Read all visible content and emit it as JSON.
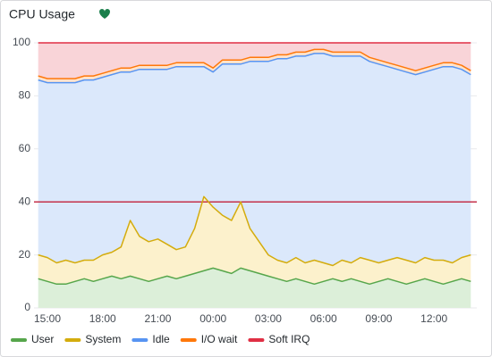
{
  "chart_data": {
    "type": "stacked_area",
    "title": "CPU Usage",
    "x": [
      "14:30",
      "15:00",
      "15:30",
      "16:00",
      "16:30",
      "17:00",
      "17:30",
      "18:00",
      "18:30",
      "19:00",
      "19:30",
      "20:00",
      "20:30",
      "21:00",
      "21:30",
      "22:00",
      "22:30",
      "23:00",
      "23:30",
      "00:00",
      "00:30",
      "01:00",
      "01:30",
      "02:00",
      "02:30",
      "03:00",
      "03:30",
      "04:00",
      "04:30",
      "05:00",
      "05:30",
      "06:00",
      "06:30",
      "07:00",
      "07:30",
      "08:00",
      "08:30",
      "09:00",
      "09:30",
      "10:00",
      "10:30",
      "11:00",
      "11:30",
      "12:00",
      "12:30",
      "13:00",
      "13:30",
      "14:00"
    ],
    "xticks": [
      "15:00",
      "18:00",
      "21:00",
      "00:00",
      "03:00",
      "06:00",
      "09:00",
      "12:00"
    ],
    "ylim": [
      0,
      100
    ],
    "yticks": [
      0,
      20,
      40,
      60,
      80,
      100
    ],
    "grid": true,
    "threshold": {
      "value": 40,
      "color": "#c4314b"
    },
    "legend": "bottom-left",
    "series": [
      {
        "name": "User",
        "color": "#56a64b",
        "fill": "#dcefd9",
        "values": [
          11,
          10,
          9,
          9,
          10,
          11,
          10,
          11,
          12,
          11,
          12,
          11,
          10,
          11,
          12,
          11,
          12,
          13,
          14,
          15,
          14,
          13,
          15,
          14,
          13,
          12,
          11,
          10,
          11,
          10,
          9,
          10,
          11,
          10,
          11,
          10,
          9,
          10,
          11,
          10,
          9,
          10,
          11,
          10,
          9,
          10,
          11,
          10
        ]
      },
      {
        "name": "System",
        "color": "#d4ac0d",
        "fill": "#fcf1cc",
        "values": [
          9,
          9,
          8,
          9,
          7,
          7,
          8,
          9,
          9,
          12,
          21,
          16,
          15,
          15,
          12,
          11,
          11,
          17,
          28,
          23,
          21,
          20,
          25,
          16,
          12,
          8,
          7,
          7,
          8,
          7,
          9,
          7,
          5,
          8,
          6,
          9,
          9,
          7,
          7,
          9,
          9,
          7,
          8,
          8,
          9,
          7,
          8,
          10
        ]
      },
      {
        "name": "Idle",
        "color": "#5794f2",
        "fill": "#dbe8fb",
        "values": [
          66,
          66,
          68,
          67,
          68,
          68,
          68,
          67,
          67,
          66,
          56,
          63,
          65,
          64,
          66,
          69,
          68,
          61,
          49,
          51,
          57,
          59,
          52,
          63,
          68,
          73,
          76,
          77,
          76,
          78,
          78,
          79,
          79,
          77,
          78,
          76,
          75,
          75,
          73,
          71,
          71,
          71,
          70,
          72,
          73,
          74,
          71,
          68
        ]
      },
      {
        "name": "I/O wait",
        "color": "#ff780a",
        "fill": "#ffe3cc",
        "values": [
          1.5,
          1.5,
          1.5,
          1.5,
          1.5,
          1.5,
          1.5,
          1.5,
          1.5,
          1.5,
          1.5,
          1.5,
          1.5,
          1.5,
          1.5,
          1.5,
          1.5,
          1.5,
          1.5,
          1.5,
          1.5,
          1.5,
          1.5,
          1.5,
          1.5,
          1.5,
          1.5,
          1.5,
          1.5,
          1.5,
          1.5,
          1.5,
          1.5,
          1.5,
          1.5,
          1.5,
          1.5,
          1.5,
          1.5,
          1.5,
          1.5,
          1.5,
          1.5,
          1.5,
          1.5,
          1.5,
          1.5,
          1.5
        ]
      },
      {
        "name": "Soft IRQ",
        "color": "#e02f44",
        "fill": "#f9d4d8",
        "values": [
          12.5,
          13.5,
          13.5,
          13.5,
          13.5,
          12.5,
          12.5,
          11.5,
          10.5,
          9.5,
          9.5,
          8.5,
          8.5,
          8.5,
          8.5,
          7.5,
          7.5,
          7.5,
          7.5,
          9.5,
          6.5,
          6.5,
          6.5,
          5.5,
          5.5,
          5.5,
          4.5,
          4.5,
          3.5,
          3.5,
          2.5,
          2.5,
          3.5,
          3.5,
          3.5,
          3.5,
          5.5,
          6.5,
          7.5,
          8.5,
          9.5,
          10.5,
          9.5,
          8.5,
          7.5,
          7.5,
          8.5,
          10.5
        ]
      }
    ]
  }
}
